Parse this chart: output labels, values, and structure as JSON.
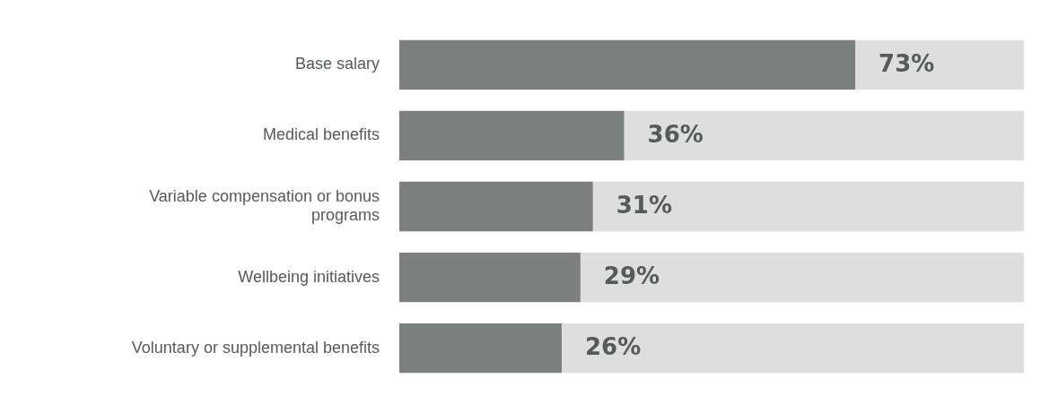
{
  "chart_data": {
    "type": "bar",
    "orientation": "horizontal",
    "stacked": true,
    "tick_labels": "y",
    "grid": false,
    "legend": false,
    "xlim": [
      0,
      100
    ],
    "categories": [
      "Base salary",
      "Medical benefits",
      "Variable compensation or bonus programs",
      "Wellbeing initiatives",
      "Voluntary or supplemental benefits"
    ],
    "series": [
      {
        "color": "#7b7f7e",
        "values": [
          73,
          36,
          31,
          29,
          26
        ],
        "value_labels": [
          "73%",
          "36%",
          "31%",
          "29%",
          "26%"
        ]
      },
      {
        "color": "#dedede",
        "values": [
          27,
          64,
          69,
          71,
          74
        ]
      }
    ]
  }
}
